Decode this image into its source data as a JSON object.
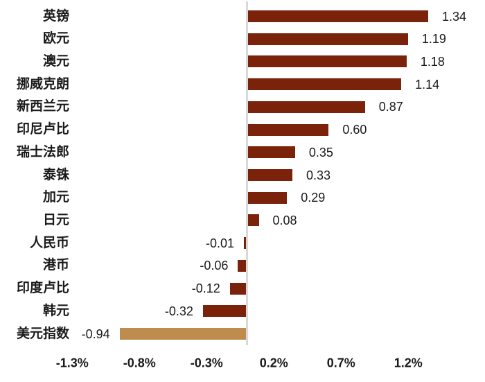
{
  "chart_data": {
    "type": "bar",
    "orientation": "horizontal",
    "title": "",
    "xlabel": "",
    "ylabel": "",
    "unit": "%",
    "categories": [
      "英镑",
      "欧元",
      "澳元",
      "挪威克朗",
      "新西兰元",
      "印尼卢比",
      "瑞士法郎",
      "泰铢",
      "加元",
      "日元",
      "人民币",
      "港币",
      "印度卢比",
      "韩元",
      "美元指数"
    ],
    "values": [
      1.34,
      1.19,
      1.18,
      1.14,
      0.87,
      0.6,
      0.35,
      0.33,
      0.29,
      0.08,
      -0.01,
      -0.06,
      -0.12,
      -0.32,
      -0.94
    ],
    "value_labels": [
      "1.34",
      "1.19",
      "1.18",
      "1.14",
      "0.87",
      "0.60",
      "0.35",
      "0.33",
      "0.29",
      "0.08",
      "-0.01",
      "-0.06",
      "-0.12",
      "-0.32",
      "-0.94"
    ],
    "highlight_index": 14,
    "x_ticks": [
      {
        "label": "-1.3%",
        "value": -1.3
      },
      {
        "label": "-0.8%",
        "value": -0.8
      },
      {
        "label": "-0.3%",
        "value": -0.3
      },
      {
        "label": "0.2%",
        "value": 0.2
      },
      {
        "label": "0.7%",
        "value": 0.7
      },
      {
        "label": "1.2%",
        "value": 1.2
      }
    ],
    "xlim": [
      -1.84,
      1.77
    ],
    "grid": "off",
    "legend": "none",
    "colors": {
      "bar": "#7A220A",
      "highlight_bar": "#BE8C4D",
      "axis_line": "#D9D9D9",
      "text": "#1A1A1A"
    }
  }
}
